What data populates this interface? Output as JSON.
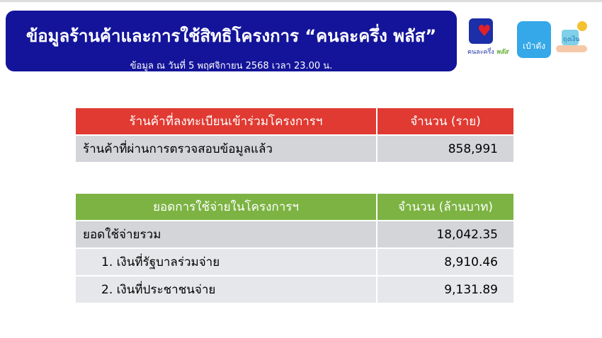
{
  "header": {
    "title": "ข้อมูลร้านค้าและการใช้สิทธิโครงการ “คนละครึ่ง พลัส”",
    "subtitle": "ข้อมูล ณ วันที่ 5 พฤศจิกายน 2568 เวลา 23.00 น."
  },
  "logos": {
    "khonlakhrueng": "คนละครึ่ง พลัส",
    "paotang": "เป๋าตัง",
    "thungngoen": "ถุงเงิน",
    "colors": {
      "banner": "#14149a",
      "red_header": "#e03a32",
      "green_header": "#7cb342"
    }
  },
  "shops_table": {
    "headers": [
      "ร้านค้าที่ลงทะเบียนเข้าร่วมโครงการฯ",
      "จำนวน (ราย)"
    ],
    "rows": [
      {
        "label": "ร้านค้าที่ผ่านการตรวจสอบข้อมูลแล้ว",
        "value": "858,991"
      }
    ]
  },
  "spending_table": {
    "headers": [
      "ยอดการใช้จ่ายในโครงการฯ",
      "จำนวน (ล้านบาท)"
    ],
    "rows": [
      {
        "label": "ยอดใช้จ่ายรวม",
        "value": "18,042.35"
      },
      {
        "label": "1. เงินที่รัฐบาลร่วมจ่าย",
        "value": "8,910.46"
      },
      {
        "label": "2. เงินที่ประชาชนจ่าย",
        "value": "9,131.89"
      }
    ]
  }
}
